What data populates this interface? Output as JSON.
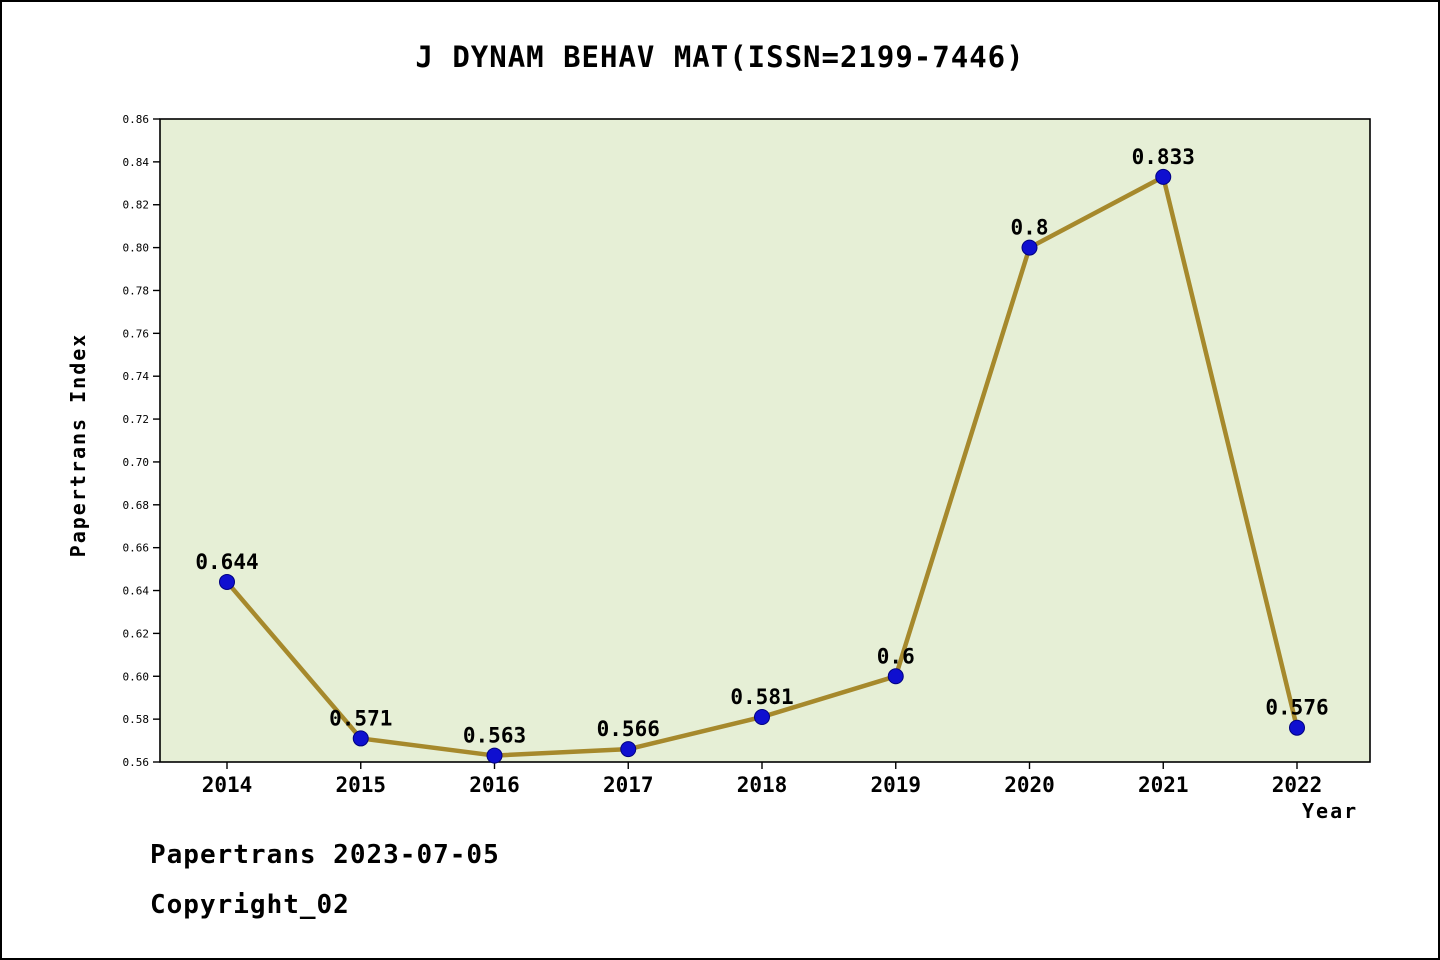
{
  "title": "J DYNAM BEHAV MAT(ISSN=2199-7446)",
  "footer": {
    "date_line": "Papertrans 2023-07-05",
    "copyright_line": "Copyright_02"
  },
  "chart_data": {
    "type": "line",
    "title": "J DYNAM BEHAV MAT(ISSN=2199-7446)",
    "x": [
      2014,
      2015,
      2016,
      2017,
      2018,
      2019,
      2020,
      2021,
      2022
    ],
    "series": [
      {
        "name": "Papertrans Index",
        "values": [
          0.644,
          0.571,
          0.563,
          0.566,
          0.581,
          0.6,
          0.8,
          0.833,
          0.576
        ]
      }
    ],
    "point_labels": [
      "0.644",
      "0.571",
      "0.563",
      "0.566",
      "0.581",
      "0.6",
      "0.8",
      "0.833",
      "0.576"
    ],
    "xlabel": "Year",
    "ylabel": "Papertrans Index",
    "ylim": [
      0.56,
      0.86
    ],
    "ytick_step": 0.02,
    "xticks": [
      2014,
      2015,
      2016,
      2017,
      2018,
      2019,
      2020,
      2021,
      2022
    ],
    "grid": false,
    "legend": "none",
    "colors": {
      "line": "#a6892c",
      "marker": "#0f0fd0",
      "marker_edge": "#000080",
      "plot_bg": "#e6efd6",
      "text": "#000000"
    }
  }
}
